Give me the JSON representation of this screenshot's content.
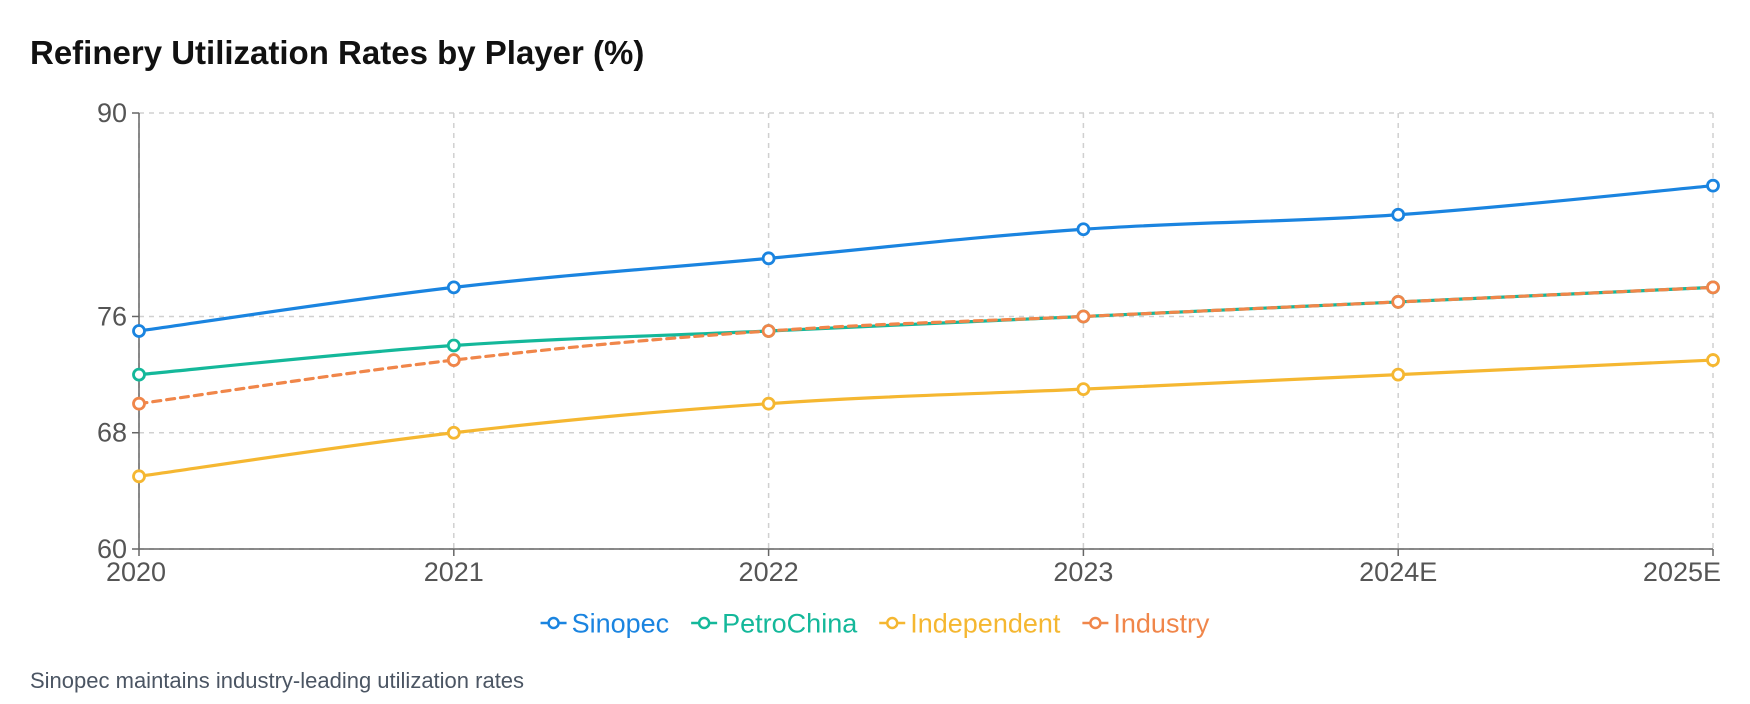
{
  "title": "Refinery Utilization Rates by Player (%)",
  "footnote": "Sinopec maintains industry-leading utilization rates",
  "chart_data": {
    "type": "line",
    "title": "Refinery Utilization Rates by Player (%)",
    "categories": [
      "2020",
      "2021",
      "2022",
      "2023",
      "2024E",
      "2025E"
    ],
    "y_ticks": [
      "60",
      "68",
      "76",
      "90"
    ],
    "ylim": [
      60,
      90
    ],
    "grid": true,
    "legend_position": "bottom-center",
    "series": [
      {
        "name": "Sinopec",
        "values": [
          75,
          78,
          80,
          82,
          83,
          85
        ],
        "color": "#1a84e0",
        "dashed": false
      },
      {
        "name": "PetroChina",
        "values": [
          72,
          74,
          75,
          76,
          77,
          78
        ],
        "color": "#14b89a",
        "dashed": false
      },
      {
        "name": "Independent",
        "values": [
          65,
          68,
          70,
          71,
          72,
          73
        ],
        "color": "#f5b731",
        "dashed": false
      },
      {
        "name": "Industry",
        "values": [
          70,
          73,
          75,
          76,
          77,
          78
        ],
        "color": "#f0864a",
        "dashed": true
      }
    ]
  }
}
